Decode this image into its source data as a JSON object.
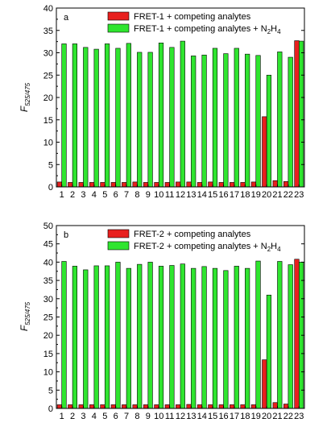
{
  "chart_data": [
    {
      "type": "bar",
      "panel_label": "a",
      "ylabel": "F",
      "ylabel_sub": "525/475",
      "ylim": [
        0,
        40
      ],
      "yticks": [
        0,
        5,
        10,
        15,
        20,
        25,
        30,
        35,
        40
      ],
      "grid": false,
      "legend_position": "top-right",
      "categories": [
        "1",
        "2",
        "3",
        "4",
        "5",
        "6",
        "7",
        "8",
        "9",
        "10",
        "11",
        "12",
        "13",
        "14",
        "15",
        "16",
        "17",
        "18",
        "19",
        "20",
        "21",
        "22",
        "23"
      ],
      "series": [
        {
          "name": "FRET-1 + competing analytes",
          "color": "#e8201e",
          "values": [
            1.1,
            1.0,
            1.0,
            1.0,
            1.0,
            1.0,
            1.0,
            1.1,
            1.0,
            1.0,
            1.0,
            1.1,
            1.1,
            1.0,
            1.1,
            1.0,
            1.0,
            1.0,
            1.1,
            15.7,
            1.4,
            1.2,
            32.7
          ]
        },
        {
          "name_parts": [
            "FRET-1 + competing analytes + N",
            "2",
            "H",
            "4"
          ],
          "color": "#2fe52f",
          "values": [
            32.0,
            32.0,
            31.2,
            30.8,
            32.0,
            31.0,
            32.1,
            30.1,
            30.1,
            32.2,
            31.2,
            32.6,
            29.3,
            29.5,
            31.0,
            29.8,
            31.0,
            29.7,
            29.4,
            25.0,
            30.2,
            29.0,
            32.6
          ]
        }
      ]
    },
    {
      "type": "bar",
      "panel_label": "b",
      "ylabel": "F",
      "ylabel_sub": "525/475",
      "ylim": [
        0,
        50
      ],
      "yticks": [
        0,
        5,
        10,
        15,
        20,
        25,
        30,
        35,
        40,
        45,
        50
      ],
      "grid": false,
      "legend_position": "top-right",
      "categories": [
        "1",
        "2",
        "3",
        "4",
        "5",
        "6",
        "7",
        "8",
        "9",
        "10",
        "11",
        "12",
        "13",
        "14",
        "15",
        "16",
        "17",
        "18",
        "19",
        "20",
        "21",
        "22",
        "23"
      ],
      "series": [
        {
          "name": "FRET-2 + competing analytes",
          "color": "#e8201e",
          "values": [
            1.0,
            1.0,
            1.0,
            1.0,
            1.0,
            1.0,
            1.0,
            1.0,
            1.0,
            1.0,
            1.0,
            1.0,
            1.1,
            1.0,
            1.0,
            1.0,
            1.0,
            1.0,
            1.0,
            13.3,
            1.6,
            1.2,
            40.8
          ]
        },
        {
          "name_parts": [
            "FRET-2 + competing analytes + N",
            "2",
            "H",
            "4"
          ],
          "color": "#2fe52f",
          "values": [
            40.2,
            38.9,
            37.9,
            39.0,
            39.0,
            40.0,
            38.3,
            39.4,
            40.0,
            38.9,
            39.1,
            39.5,
            38.3,
            38.8,
            38.3,
            37.7,
            38.9,
            38.3,
            40.3,
            31.0,
            40.2,
            39.3,
            40.0
          ]
        }
      ]
    }
  ]
}
